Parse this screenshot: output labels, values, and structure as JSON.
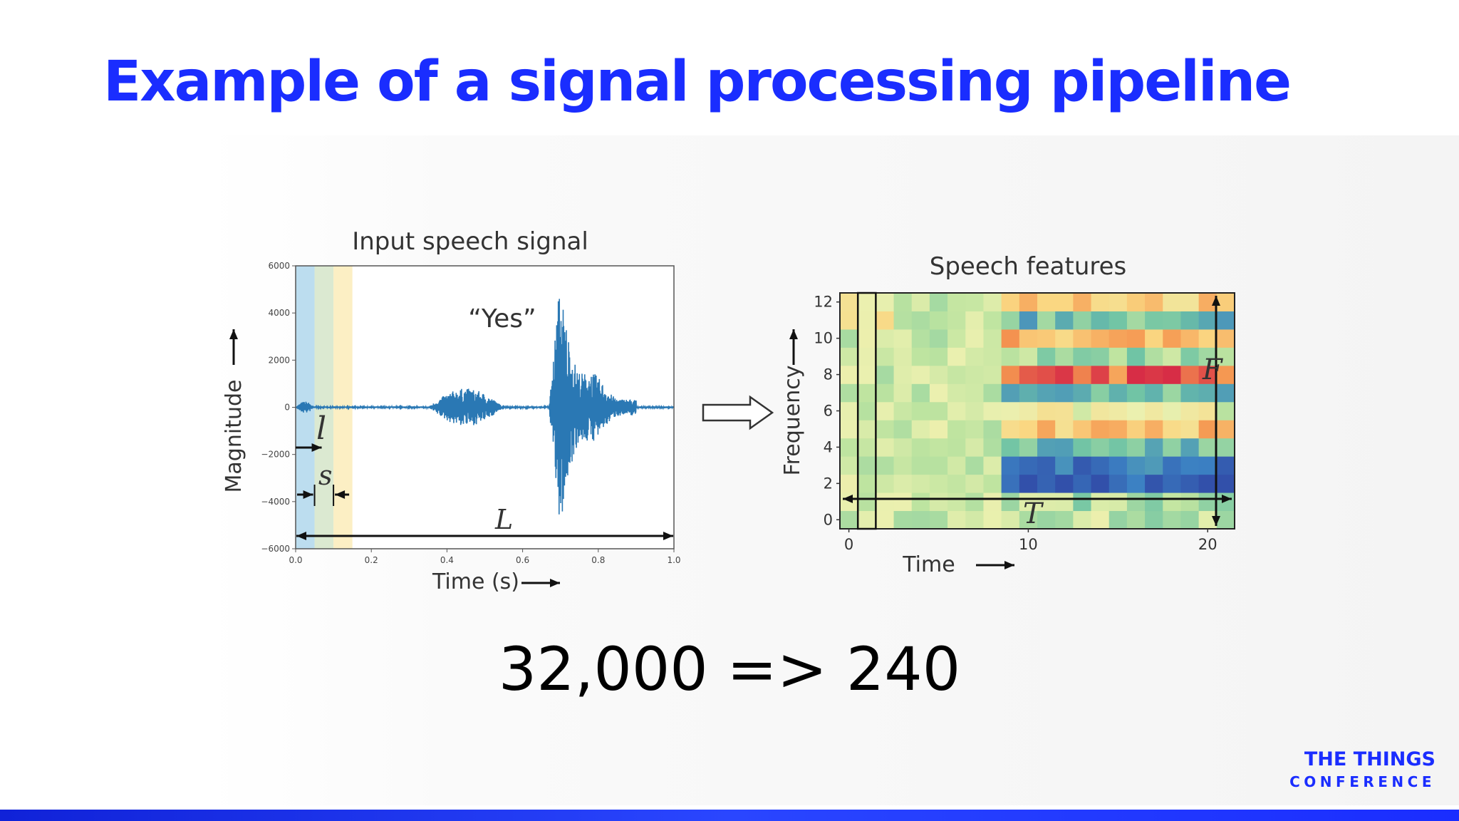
{
  "slide": {
    "title": "Example of a signal processing pipeline",
    "ratio_text": "32,000 => 240",
    "logo_line1": "THE THINGS",
    "logo_line2": "CONFERENCE",
    "accent_color": "#1a2dff"
  },
  "arrow_icon": "hollow-right-arrow",
  "chart_data": [
    {
      "type": "line",
      "title": "Input speech signal",
      "xlabel": "Time (s)",
      "ylabel": "Magnitude",
      "xlim": [
        0.0,
        1.0
      ],
      "ylim": [
        -6000,
        6000
      ],
      "x_ticks": [
        "0.0",
        "0.2",
        "0.4",
        "0.6",
        "0.8",
        "1.0"
      ],
      "y_ticks": [
        "6000",
        "4000",
        "2000",
        "0",
        "−2000",
        "−4000",
        "−6000"
      ],
      "annotation": "“Yes”",
      "frame_labels": {
        "frame_length": "l",
        "stride": "s",
        "total_length": "L"
      },
      "windows": [
        {
          "start": 0.0,
          "end": 0.05,
          "color": "#a6d1ea"
        },
        {
          "start": 0.05,
          "end": 0.1,
          "color": "#cfe2c2"
        },
        {
          "start": 0.1,
          "end": 0.15,
          "color": "#fbeab0"
        }
      ],
      "waveform_segments": [
        {
          "t_start": 0.0,
          "t_end": 0.05,
          "peak": 250
        },
        {
          "t_start": 0.35,
          "t_end": 0.55,
          "peak": 800
        },
        {
          "t_start": 0.67,
          "t_end": 0.9,
          "peak": 5300
        }
      ],
      "grid": false
    },
    {
      "type": "heatmap",
      "title": "Speech features",
      "xlabel": "Time",
      "ylabel": "Frequency",
      "xlim": [
        0,
        21
      ],
      "ylim": [
        0,
        12
      ],
      "x_ticks": [
        "0",
        "10",
        "20"
      ],
      "y_ticks": [
        "0",
        "2",
        "4",
        "6",
        "8",
        "10",
        "12"
      ],
      "dimension_labels": {
        "frequency": "F",
        "time": "T"
      },
      "colormap": "Spectral_r",
      "grid_size": [
        22,
        13
      ]
    }
  ]
}
